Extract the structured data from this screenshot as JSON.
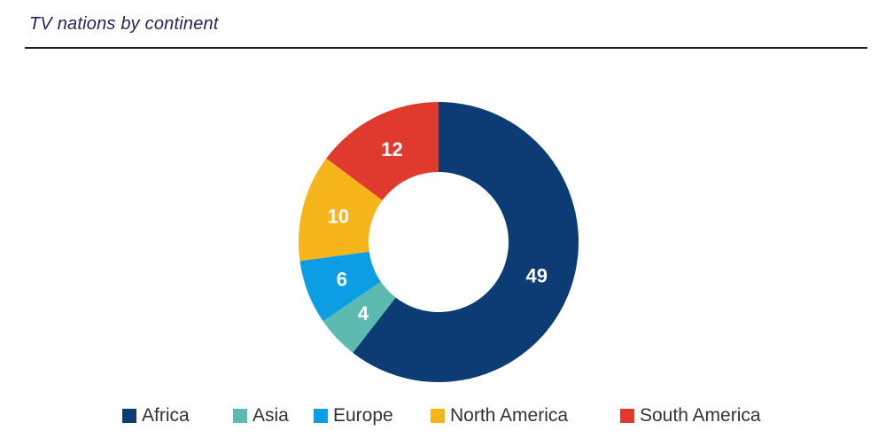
{
  "chart_data": {
    "type": "pie",
    "subtype": "donut",
    "title": "TV nations by continent",
    "categories": [
      "Africa",
      "Asia",
      "Europe",
      "North America",
      "South America"
    ],
    "values": [
      49,
      4,
      6,
      10,
      12
    ],
    "data_labels": [
      "49",
      "4",
      "6",
      "10",
      "12"
    ],
    "colors": [
      "#0d3b73",
      "#5cbab0",
      "#0b9ee4",
      "#f5b51b",
      "#e03a2f"
    ],
    "legend": {
      "placement": "bottom",
      "entries": [
        "Africa",
        "Asia",
        "Europe",
        "North America",
        "South America"
      ]
    },
    "start_position": "top",
    "direction": "clockwise",
    "grid": false
  }
}
